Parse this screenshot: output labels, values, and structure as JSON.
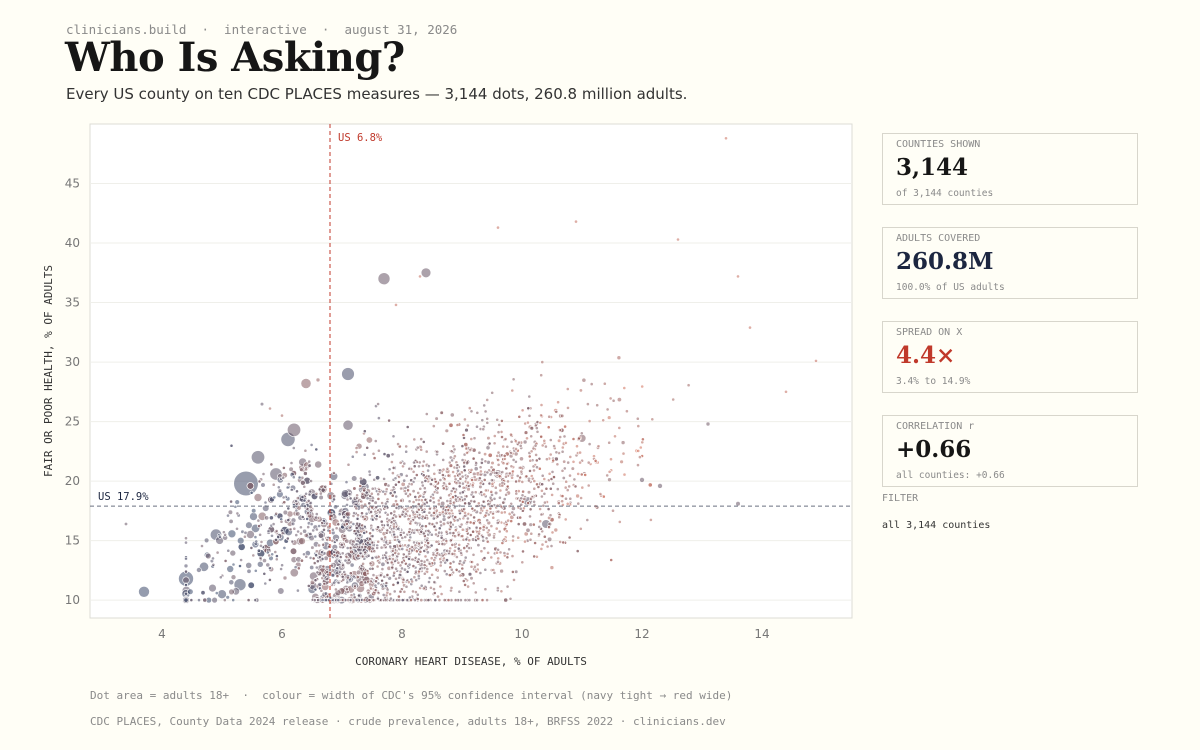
{
  "header": {
    "kicker": "clinicians.build  ·  interactive  ·  august 31, 2026",
    "title": "Who Is Asking?",
    "subtitle": "Every US county on ten CDC PLACES measures — 3,144 dots, 260.8 million adults."
  },
  "stats": [
    {
      "label": "COUNTIES SHOWN",
      "value": "3,144",
      "sub": "of 3,144 counties",
      "color": "#161616"
    },
    {
      "label": "ADULTS COVERED",
      "value": "260.8M",
      "sub": "100.0% of US adults",
      "color": "#1c2640"
    },
    {
      "label": "SPREAD ON X",
      "value": "4.4×",
      "sub": "3.4% to 14.9%",
      "color": "#c0392b"
    },
    {
      "label": "CORRELATION r",
      "value": "+0.66",
      "sub": "all counties: +0.66",
      "color": "#161616"
    }
  ],
  "filter": {
    "label": "FILTER",
    "value": "all 3,144 counties"
  },
  "footer": {
    "note": "Dot area = adults 18+  ·  colour = width of CDC's 95% confidence interval (navy tight → red wide)",
    "source": "CDC PLACES, County Data 2024 release · crude prevalence, adults 18+, BRFSS 2022 · clinicians.dev"
  },
  "colors": {
    "tight": "#3b4a6b",
    "wide": "#d2705a",
    "ref_x": "#c0392b",
    "ref_y": "#1c2640"
  },
  "chart_data": {
    "type": "scatter",
    "xlabel": "CORONARY HEART DISEASE, % OF ADULTS",
    "ylabel": "FAIR OR POOR HEALTH, % OF ADULTS",
    "xlim": [
      2.8,
      15.5
    ],
    "ylim": [
      8.5,
      50
    ],
    "xticks": [
      4,
      6,
      8,
      10,
      12,
      14
    ],
    "yticks": [
      10,
      15,
      20,
      25,
      30,
      35,
      40,
      45
    ],
    "grid": "horizontal",
    "ref_lines": [
      {
        "axis": "x",
        "value": 6.8,
        "label": "US 6.8%"
      },
      {
        "axis": "y",
        "value": 17.9,
        "label": "US 17.9%"
      }
    ],
    "n_points": 3144,
    "correlation": 0.66,
    "x_range": [
      3.4,
      14.9
    ],
    "highlight_points": [
      {
        "x": 5.4,
        "y": 19.8,
        "adults": 7500000,
        "ci": 0.05
      },
      {
        "x": 4.4,
        "y": 11.8,
        "adults": 2800000,
        "ci": 0.02
      },
      {
        "x": 3.7,
        "y": 10.7,
        "adults": 1500000,
        "ci": 0.02
      },
      {
        "x": 7.1,
        "y": 29.0,
        "adults": 2000000,
        "ci": 0.08
      },
      {
        "x": 7.7,
        "y": 37.0,
        "adults": 1800000,
        "ci": 0.3
      },
      {
        "x": 8.4,
        "y": 37.5,
        "adults": 1200000,
        "ci": 0.3
      },
      {
        "x": 6.1,
        "y": 23.5,
        "adults": 2500000,
        "ci": 0.1
      },
      {
        "x": 6.2,
        "y": 24.3,
        "adults": 2200000,
        "ci": 0.3
      },
      {
        "x": 5.6,
        "y": 22.0,
        "adults": 2200000,
        "ci": 0.15
      },
      {
        "x": 5.3,
        "y": 11.3,
        "adults": 1800000,
        "ci": 0.05
      },
      {
        "x": 4.9,
        "y": 15.5,
        "adults": 1600000,
        "ci": 0.08
      },
      {
        "x": 5.9,
        "y": 20.6,
        "adults": 1900000,
        "ci": 0.2
      },
      {
        "x": 6.4,
        "y": 28.2,
        "adults": 1300000,
        "ci": 0.5
      },
      {
        "x": 7.1,
        "y": 24.7,
        "adults": 1300000,
        "ci": 0.25
      },
      {
        "x": 10.4,
        "y": 16.4,
        "adults": 900000,
        "ci": 0.2
      },
      {
        "x": 10.1,
        "y": 18.3,
        "adults": 1000000,
        "ci": 0.25
      },
      {
        "x": 9.6,
        "y": 20.6,
        "adults": 900000,
        "ci": 0.4
      },
      {
        "x": 11.0,
        "y": 23.6,
        "adults": 800000,
        "ci": 0.45
      },
      {
        "x": 5.0,
        "y": 10.5,
        "adults": 1000000,
        "ci": 0.05
      },
      {
        "x": 4.7,
        "y": 12.8,
        "adults": 1100000,
        "ci": 0.05
      },
      {
        "x": 12.0,
        "y": 20.1,
        "adults": 300000,
        "ci": 0.3
      },
      {
        "x": 12.3,
        "y": 19.6,
        "adults": 300000,
        "ci": 0.3
      },
      {
        "x": 13.6,
        "y": 18.1,
        "adults": 250000,
        "ci": 0.3
      },
      {
        "x": 13.1,
        "y": 24.8,
        "adults": 200000,
        "ci": 0.35
      },
      {
        "x": 3.4,
        "y": 16.4,
        "adults": 150000,
        "ci": 0.3
      },
      {
        "x": 10.9,
        "y": 41.8,
        "adults": 40000,
        "ci": 0.9
      },
      {
        "x": 9.6,
        "y": 41.3,
        "adults": 40000,
        "ci": 0.9
      },
      {
        "x": 12.6,
        "y": 40.3,
        "adults": 30000,
        "ci": 0.9
      },
      {
        "x": 13.4,
        "y": 48.8,
        "adults": 10000,
        "ci": 0.95
      },
      {
        "x": 14.9,
        "y": 30.1,
        "adults": 20000,
        "ci": 0.9
      },
      {
        "x": 13.8,
        "y": 32.9,
        "adults": 20000,
        "ci": 0.9
      },
      {
        "x": 14.4,
        "y": 27.5,
        "adults": 15000,
        "ci": 0.9
      },
      {
        "x": 13.6,
        "y": 37.2,
        "adults": 20000,
        "ci": 0.9
      },
      {
        "x": 6.6,
        "y": 28.5,
        "adults": 200000,
        "ci": 0.6
      },
      {
        "x": 8.3,
        "y": 37.2,
        "adults": 40000,
        "ci": 0.9
      },
      {
        "x": 7.9,
        "y": 34.8,
        "adults": 50000,
        "ci": 0.9
      },
      {
        "x": 5.8,
        "y": 26.1,
        "adults": 80000,
        "ci": 0.7
      },
      {
        "x": 6.0,
        "y": 25.5,
        "adults": 80000,
        "ci": 0.7
      }
    ]
  }
}
